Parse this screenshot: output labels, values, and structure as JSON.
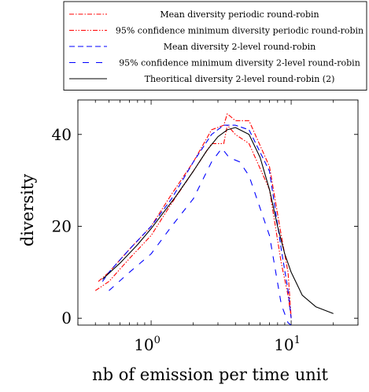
{
  "chart_data": {
    "type": "line",
    "xscale": "log",
    "xlim": [
      0.3,
      30
    ],
    "ylim": [
      -1.5,
      47.5
    ],
    "xlabel": "nb of emission per time unit",
    "ylabel": "diversity",
    "grid": false,
    "legend_position": "top",
    "xticks": [
      {
        "value": 1,
        "base": "10",
        "exp": "0"
      },
      {
        "value": 10,
        "base": "10",
        "exp": "1"
      }
    ],
    "yticks": [
      {
        "value": 0,
        "label": "0"
      },
      {
        "value": 20,
        "label": "20"
      },
      {
        "value": 40,
        "label": "40"
      }
    ],
    "series": [
      {
        "name": "Mean diversity periodic round-robin",
        "color": "#ff0000",
        "dash": "dashdotted",
        "x": [
          0.42,
          0.5,
          0.7,
          1.0,
          1.4,
          2.0,
          2.7,
          3.3,
          3.5,
          4.0,
          5.0,
          7.0,
          8.5,
          9.5,
          10.0
        ],
        "y": [
          8,
          10,
          15,
          20,
          27,
          34,
          41,
          42,
          44.5,
          43,
          43,
          33,
          18,
          10,
          0
        ]
      },
      {
        "name": "95% confidence minimum diversity periodic round-robin",
        "color": "#ff0000",
        "dash": "dashdotdotted",
        "x": [
          0.4,
          0.5,
          0.7,
          1.0,
          1.4,
          2.0,
          2.7,
          3.3,
          3.5,
          4.0,
          5.0,
          7.0,
          8.5,
          9.5,
          10.0
        ],
        "y": [
          6,
          8,
          13,
          18,
          25,
          32,
          38,
          38,
          42,
          40,
          38,
          28,
          12,
          5,
          0
        ]
      },
      {
        "name": "Mean diversity 2-level round-robin",
        "color": "#0000ff",
        "dash": "dashed",
        "x": [
          0.45,
          0.5,
          0.7,
          1.0,
          1.4,
          2.0,
          2.7,
          3.3,
          4.0,
          5.0,
          7.0,
          8.5,
          9.5,
          10.0
        ],
        "y": [
          8,
          10,
          15,
          20,
          26,
          34,
          40,
          42,
          42,
          41,
          32,
          15,
          6,
          0
        ]
      },
      {
        "name": "95% confidence minimum diversity 2-level round-robin",
        "color": "#0000ff",
        "dash": "loosely dashed",
        "x": [
          0.5,
          0.7,
          1.0,
          1.4,
          2.0,
          2.7,
          3.2,
          3.6,
          4.3,
          5.0,
          7.0,
          8.5,
          9.5,
          10.5
        ],
        "y": [
          6,
          10,
          14,
          20,
          26,
          34,
          37,
          35,
          34,
          31,
          18,
          3,
          -1,
          -2
        ]
      },
      {
        "name": "Theoritical diversity 2-level round-robin (2)",
        "color": "#000000",
        "dash": "solid",
        "x": [
          0.45,
          0.6,
          0.8,
          1.0,
          1.5,
          2.0,
          2.5,
          3.0,
          3.5,
          4.0,
          5.0,
          6.0,
          7.0,
          8.0,
          9.0,
          10.0,
          12.0,
          15.0,
          20.0
        ],
        "y": [
          8.5,
          12,
          16,
          19.5,
          26.5,
          32,
          36.5,
          39.5,
          41,
          41.5,
          40,
          35,
          28,
          20,
          14,
          10,
          5,
          2.5,
          1
        ]
      }
    ]
  }
}
